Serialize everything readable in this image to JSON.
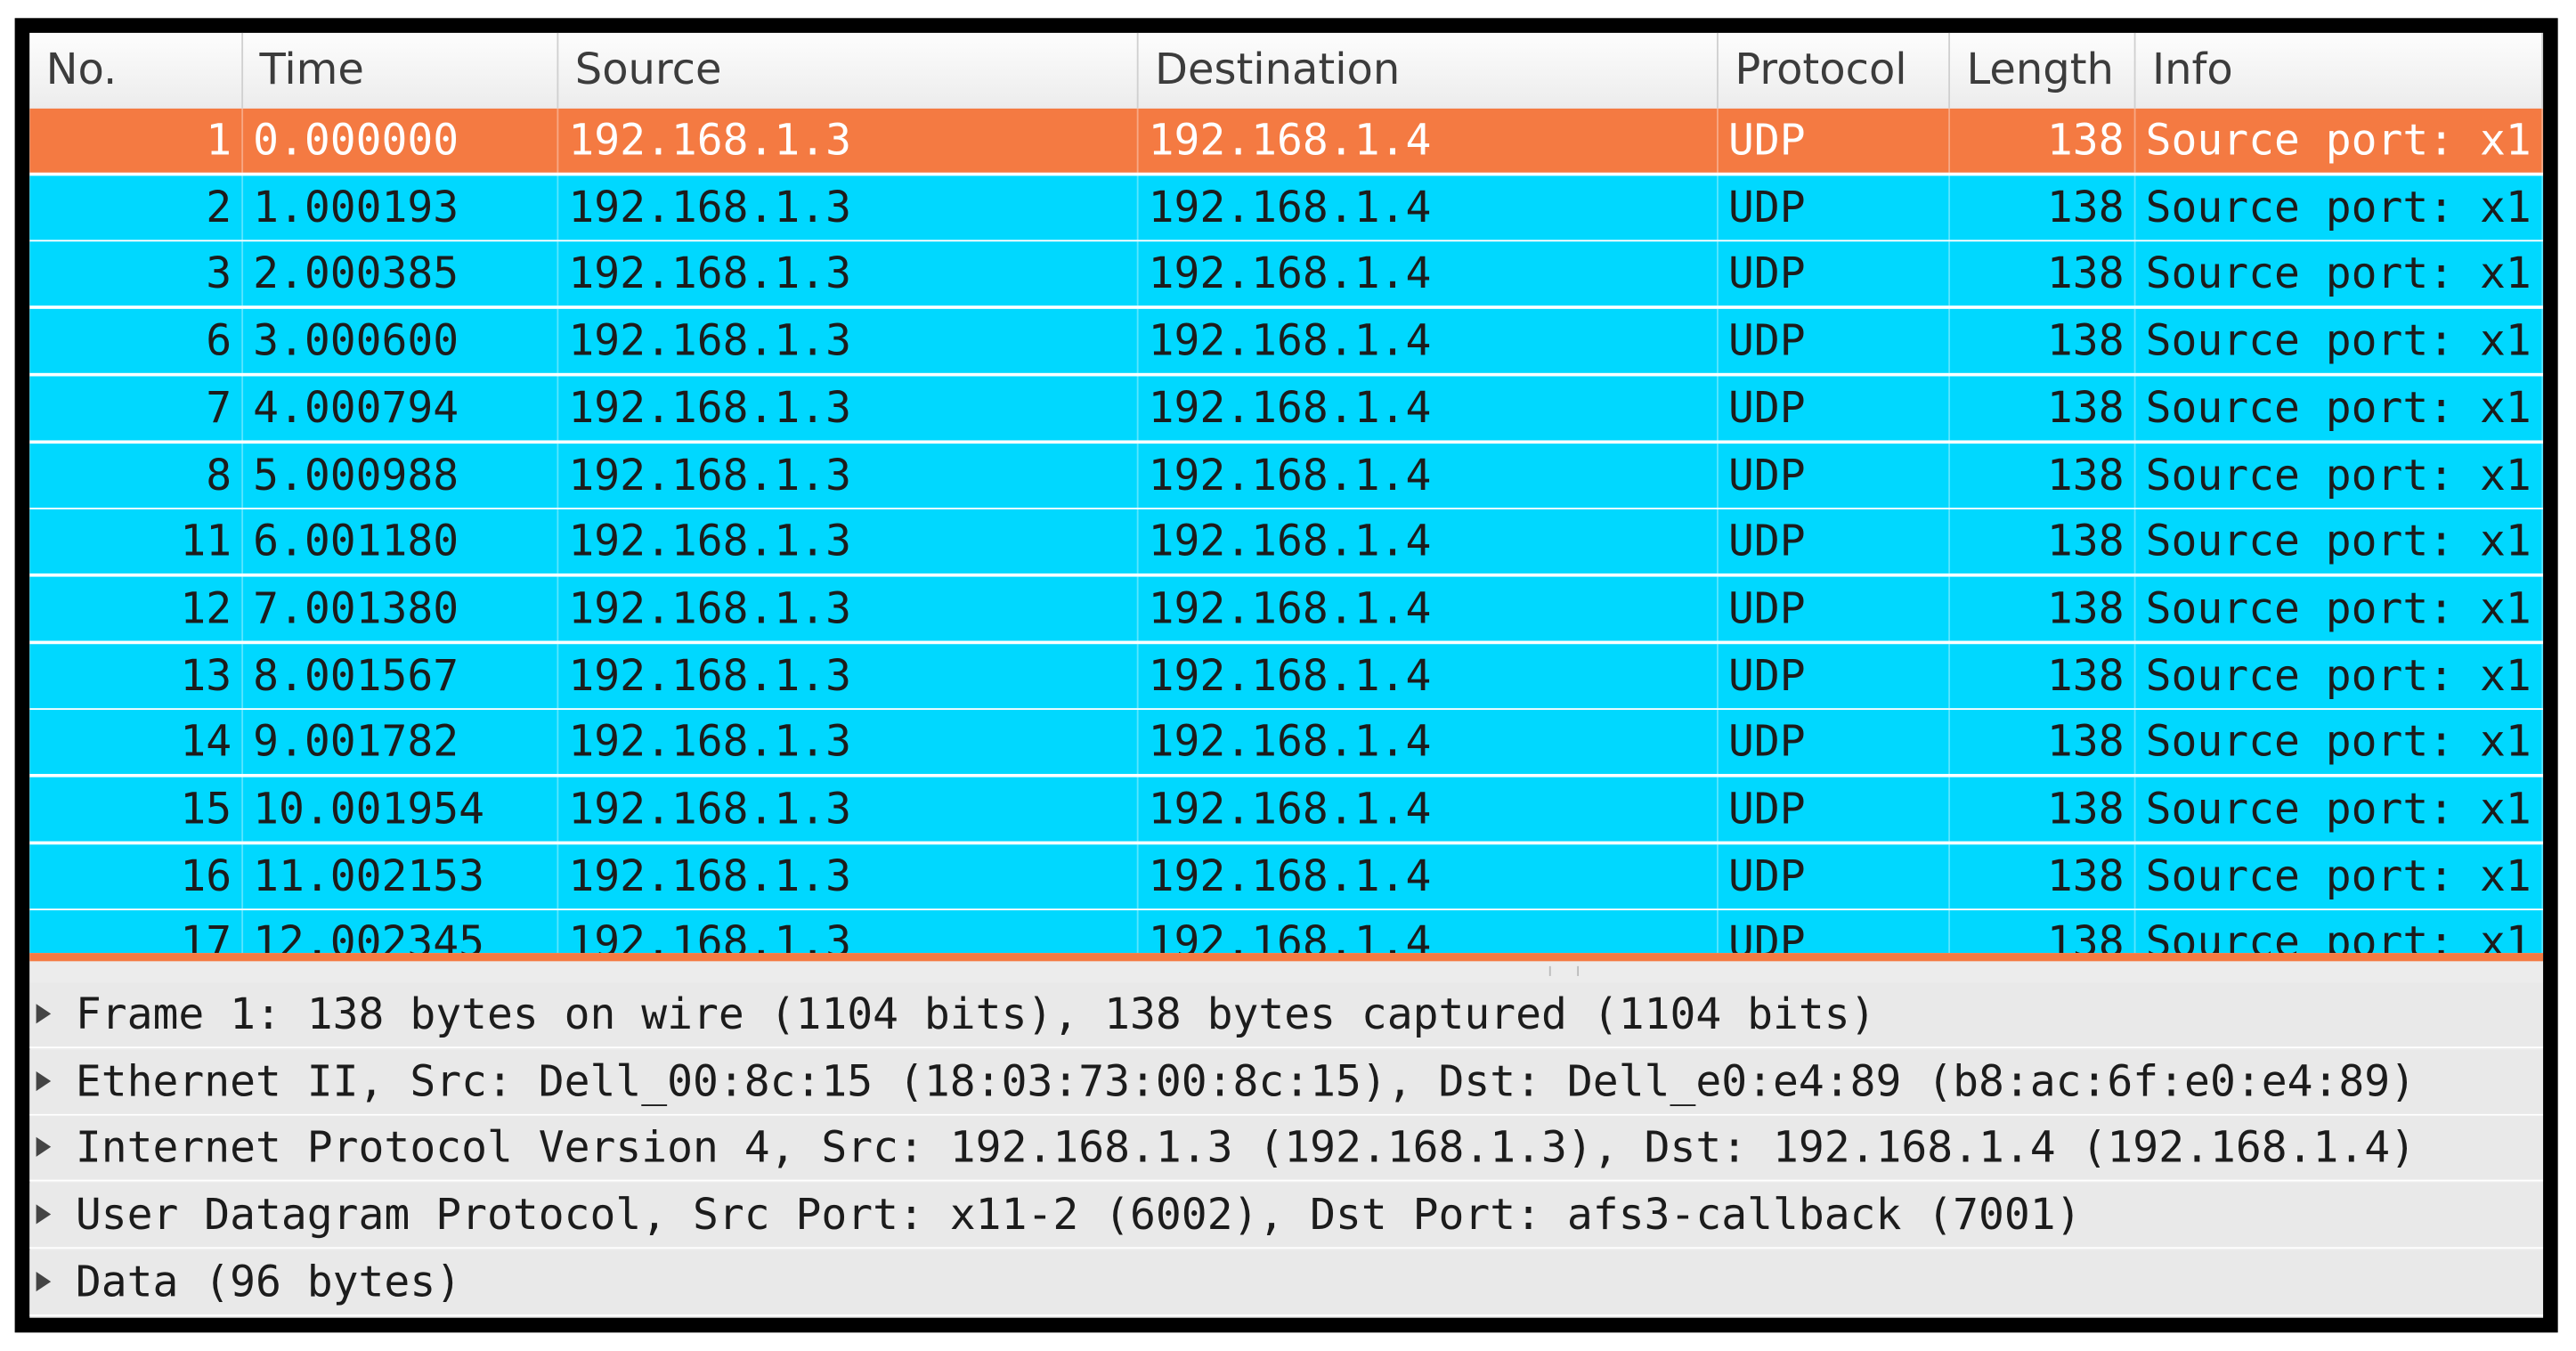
{
  "columns": [
    "No.",
    "Time",
    "Source",
    "Destination",
    "Protocol",
    "Length",
    "Info"
  ],
  "packets": [
    [
      "1",
      "0.000000",
      "192.168.1.3",
      "192.168.1.4",
      "UDP",
      "138",
      "Source port: x1"
    ],
    [
      "2",
      "1.000193",
      "192.168.1.3",
      "192.168.1.4",
      "UDP",
      "138",
      "Source port: x1"
    ],
    [
      "3",
      "2.000385",
      "192.168.1.3",
      "192.168.1.4",
      "UDP",
      "138",
      "Source port: x1"
    ],
    [
      "6",
      "3.000600",
      "192.168.1.3",
      "192.168.1.4",
      "UDP",
      "138",
      "Source port: x1"
    ],
    [
      "7",
      "4.000794",
      "192.168.1.3",
      "192.168.1.4",
      "UDP",
      "138",
      "Source port: x1"
    ],
    [
      "8",
      "5.000988",
      "192.168.1.3",
      "192.168.1.4",
      "UDP",
      "138",
      "Source port: x1"
    ],
    [
      "11",
      "6.001180",
      "192.168.1.3",
      "192.168.1.4",
      "UDP",
      "138",
      "Source port: x1"
    ],
    [
      "12",
      "7.001380",
      "192.168.1.3",
      "192.168.1.4",
      "UDP",
      "138",
      "Source port: x1"
    ],
    [
      "13",
      "8.001567",
      "192.168.1.3",
      "192.168.1.4",
      "UDP",
      "138",
      "Source port: x1"
    ],
    [
      "14",
      "9.001782",
      "192.168.1.3",
      "192.168.1.4",
      "UDP",
      "138",
      "Source port: x1"
    ],
    [
      "15",
      "10.001954",
      "192.168.1.3",
      "192.168.1.4",
      "UDP",
      "138",
      "Source port: x1"
    ],
    [
      "16",
      "11.002153",
      "192.168.1.3",
      "192.168.1.4",
      "UDP",
      "138",
      "Source port: x1"
    ],
    [
      "17",
      "12.002345",
      "192.168.1.3",
      "192.168.1.4",
      "UDP",
      "138",
      "Source port: x1"
    ]
  ],
  "details": [
    "Frame 1: 138 bytes on wire (1104 bits), 138 bytes captured (1104 bits)",
    "Ethernet II, Src: Dell_00:8c:15 (18:03:73:00:8c:15), Dst: Dell_e0:e4:89 (b8:ac:6f:e0:e4:89)",
    "Internet Protocol Version 4, Src: 192.168.1.3 (192.168.1.3), Dst: 192.168.1.4 (192.168.1.4)",
    "User Datagram Protocol, Src Port: x11-2 (6002), Dst Port: afs3-callback (7001)",
    "Data (96 bytes)"
  ]
}
